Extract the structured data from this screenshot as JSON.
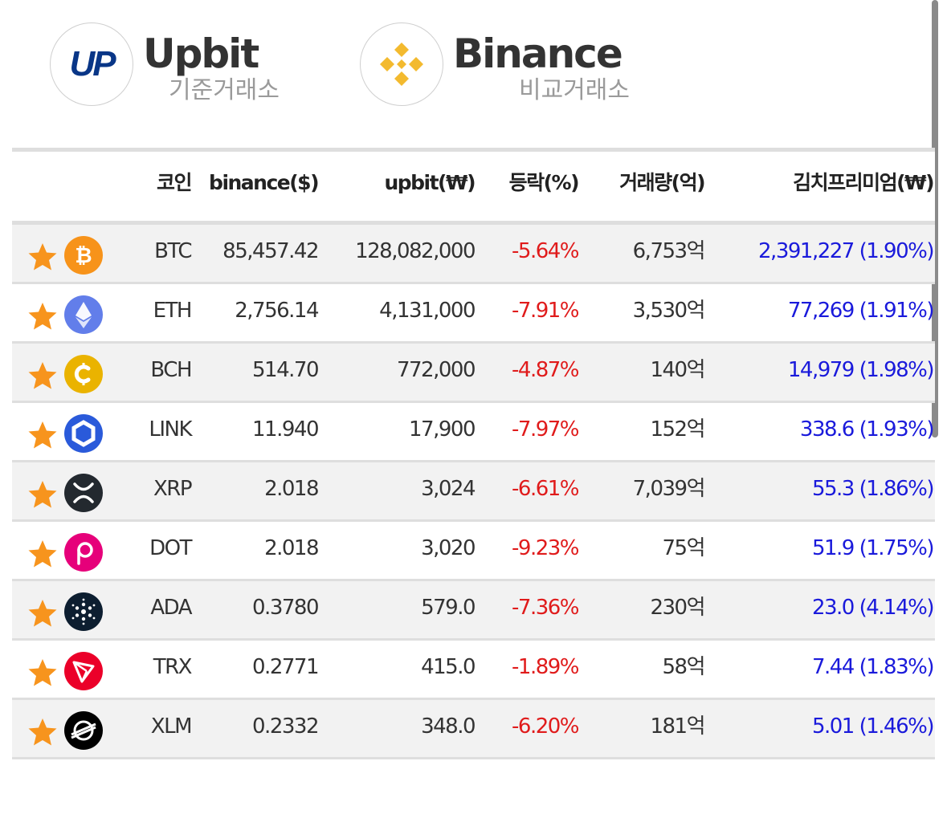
{
  "exchanges": {
    "base": {
      "name": "Upbit",
      "subtitle": "기준거래소",
      "logo_text": "UP"
    },
    "compare": {
      "name": "Binance",
      "subtitle": "비교거래소"
    }
  },
  "table": {
    "headers": {
      "coin": "코인",
      "binance": "binance($)",
      "upbit": "upbit(₩)",
      "change": "등락(%)",
      "volume": "거래량(억)",
      "kimchi": "김치프리미엄(₩)"
    },
    "rows": [
      {
        "symbol": "BTC",
        "icon": "bitcoin-icon",
        "color": "#F7931A",
        "binance": "85,457.42",
        "upbit": "128,082,000",
        "change": "-5.64%",
        "volume": "6,753억",
        "kimchi": "2,391,227 (1.90%)"
      },
      {
        "symbol": "ETH",
        "icon": "ethereum-icon",
        "color": "#627EEA",
        "binance": "2,756.14",
        "upbit": "4,131,000",
        "change": "-7.91%",
        "volume": "3,530억",
        "kimchi": "77,269 (1.91%)"
      },
      {
        "symbol": "BCH",
        "icon": "bitcoin-cash-icon",
        "color": "#EAB300",
        "binance": "514.70",
        "upbit": "772,000",
        "change": "-4.87%",
        "volume": "140억",
        "kimchi": "14,979 (1.98%)"
      },
      {
        "symbol": "LINK",
        "icon": "chainlink-icon",
        "color": "#2A5ADA",
        "binance": "11.940",
        "upbit": "17,900",
        "change": "-7.97%",
        "volume": "152억",
        "kimchi": "338.6 (1.93%)"
      },
      {
        "symbol": "XRP",
        "icon": "xrp-icon",
        "color": "#23292F",
        "binance": "2.018",
        "upbit": "3,024",
        "change": "-6.61%",
        "volume": "7,039억",
        "kimchi": "55.3 (1.86%)"
      },
      {
        "symbol": "DOT",
        "icon": "polkadot-icon",
        "color": "#E6007A",
        "binance": "2.018",
        "upbit": "3,020",
        "change": "-9.23%",
        "volume": "75억",
        "kimchi": "51.9 (1.75%)"
      },
      {
        "symbol": "ADA",
        "icon": "cardano-icon",
        "color": "#0D1E30",
        "binance": "0.3780",
        "upbit": "579.0",
        "change": "-7.36%",
        "volume": "230억",
        "kimchi": "23.0 (4.14%)"
      },
      {
        "symbol": "TRX",
        "icon": "tron-icon",
        "color": "#EB0029",
        "binance": "0.2771",
        "upbit": "415.0",
        "change": "-1.89%",
        "volume": "58억",
        "kimchi": "7.44 (1.83%)"
      },
      {
        "symbol": "XLM",
        "icon": "stellar-icon",
        "color": "#000000",
        "binance": "0.2332",
        "upbit": "348.0",
        "change": "-6.20%",
        "volume": "181억",
        "kimchi": "5.01 (1.46%)"
      }
    ]
  },
  "colors": {
    "star": "#F7941D",
    "negative": "#E01B1B",
    "premium": "#1A1ADB",
    "upbit_brand": "#093687",
    "binance_brand": "#F3BA2F"
  }
}
